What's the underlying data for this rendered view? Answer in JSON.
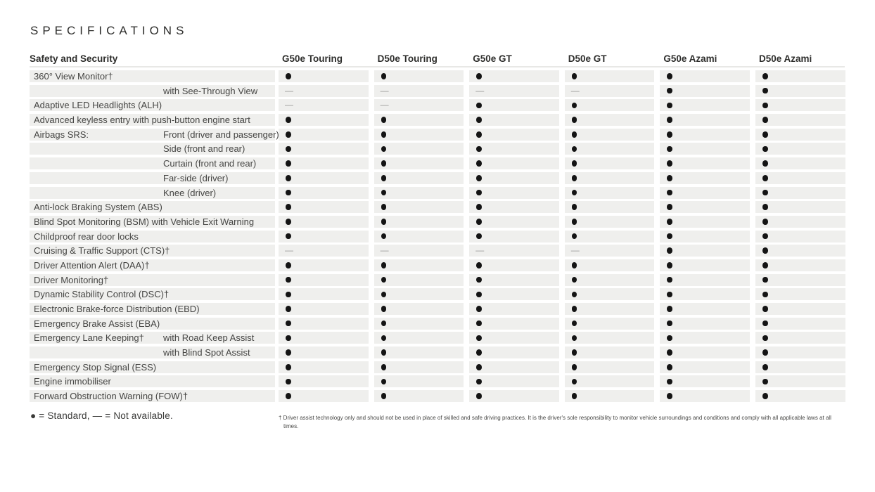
{
  "page": {
    "title": "SPECIFICATIONS"
  },
  "table": {
    "category_header": "Safety and Security",
    "columns": [
      "G50e Touring",
      "D50e Touring",
      "G50e GT",
      "D50e GT",
      "G50e Azami",
      "D50e Azami"
    ],
    "rows": [
      {
        "label": "360° View Monitor†",
        "sublabel": "",
        "values": [
          "standard",
          "standard",
          "standard",
          "standard",
          "standard",
          "standard"
        ]
      },
      {
        "label": "",
        "sublabel": "with See-Through View",
        "values": [
          "na",
          "na",
          "na",
          "na",
          "standard",
          "standard"
        ]
      },
      {
        "label": "Adaptive LED Headlights (ALH)",
        "sublabel": "",
        "values": [
          "na",
          "na",
          "standard",
          "standard",
          "standard",
          "standard"
        ]
      },
      {
        "label": "Advanced keyless entry with push-button engine start",
        "sublabel": "",
        "values": [
          "standard",
          "standard",
          "standard",
          "standard",
          "standard",
          "standard"
        ]
      },
      {
        "label": "Airbags SRS:",
        "sublabel": "Front (driver and passenger)",
        "values": [
          "standard",
          "standard",
          "standard",
          "standard",
          "standard",
          "standard"
        ]
      },
      {
        "label": "",
        "sublabel": "Side (front and rear)",
        "values": [
          "standard",
          "standard",
          "standard",
          "standard",
          "standard",
          "standard"
        ]
      },
      {
        "label": "",
        "sublabel": "Curtain (front and rear)",
        "values": [
          "standard",
          "standard",
          "standard",
          "standard",
          "standard",
          "standard"
        ]
      },
      {
        "label": "",
        "sublabel": "Far-side (driver)",
        "values": [
          "standard",
          "standard",
          "standard",
          "standard",
          "standard",
          "standard"
        ]
      },
      {
        "label": "",
        "sublabel": "Knee (driver)",
        "values": [
          "standard",
          "standard",
          "standard",
          "standard",
          "standard",
          "standard"
        ]
      },
      {
        "label": "Anti-lock Braking System (ABS)",
        "sublabel": "",
        "values": [
          "standard",
          "standard",
          "standard",
          "standard",
          "standard",
          "standard"
        ]
      },
      {
        "label": "Blind Spot Monitoring (BSM) with Vehicle Exit Warning",
        "sublabel": "",
        "values": [
          "standard",
          "standard",
          "standard",
          "standard",
          "standard",
          "standard"
        ]
      },
      {
        "label": "Childproof rear door locks",
        "sublabel": "",
        "values": [
          "standard",
          "standard",
          "standard",
          "standard",
          "standard",
          "standard"
        ]
      },
      {
        "label": "Cruising & Traffic Support (CTS)†",
        "sublabel": "",
        "values": [
          "na",
          "na",
          "na",
          "na",
          "standard",
          "standard"
        ]
      },
      {
        "label": "Driver Attention Alert (DAA)†",
        "sublabel": "",
        "values": [
          "standard",
          "standard",
          "standard",
          "standard",
          "standard",
          "standard"
        ]
      },
      {
        "label": "Driver Monitoring†",
        "sublabel": "",
        "values": [
          "standard",
          "standard",
          "standard",
          "standard",
          "standard",
          "standard"
        ]
      },
      {
        "label": "Dynamic Stability Control (DSC)†",
        "sublabel": "",
        "values": [
          "standard",
          "standard",
          "standard",
          "standard",
          "standard",
          "standard"
        ]
      },
      {
        "label": "Electronic Brake-force Distribution (EBD)",
        "sublabel": "",
        "values": [
          "standard",
          "standard",
          "standard",
          "standard",
          "standard",
          "standard"
        ]
      },
      {
        "label": "Emergency Brake Assist (EBA)",
        "sublabel": "",
        "values": [
          "standard",
          "standard",
          "standard",
          "standard",
          "standard",
          "standard"
        ]
      },
      {
        "label": "Emergency Lane Keeping†",
        "sublabel": "with Road Keep Assist",
        "values": [
          "standard",
          "standard",
          "standard",
          "standard",
          "standard",
          "standard"
        ]
      },
      {
        "label": "",
        "sublabel": "with Blind Spot Assist",
        "values": [
          "standard",
          "standard",
          "standard",
          "standard",
          "standard",
          "standard"
        ]
      },
      {
        "label": "Emergency Stop Signal (ESS)",
        "sublabel": "",
        "values": [
          "standard",
          "standard",
          "standard",
          "standard",
          "standard",
          "standard"
        ]
      },
      {
        "label": "Engine immobiliser",
        "sublabel": "",
        "values": [
          "standard",
          "standard",
          "standard",
          "standard",
          "standard",
          "standard"
        ]
      },
      {
        "label": "Forward Obstruction Warning (FOW)†",
        "sublabel": "",
        "values": [
          "standard",
          "standard",
          "standard",
          "standard",
          "standard",
          "standard"
        ]
      }
    ]
  },
  "legend": {
    "standard_symbol": "●",
    "na_symbol": "—",
    "text": "● = Standard,   — = Not available."
  },
  "footnote": {
    "text": "† Driver assist technology only and should not be used in place of skilled and safe driving practices. It is the driver's sole responsibility to monitor vehicle surroundings and conditions and comply with all applicable laws at all times."
  }
}
